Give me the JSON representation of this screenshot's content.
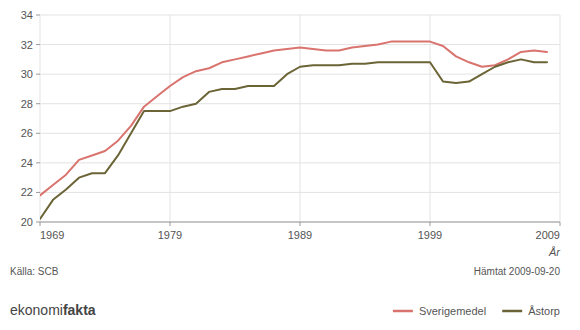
{
  "chart_data": {
    "type": "line",
    "x_label": "År",
    "x": [
      1969,
      1970,
      1971,
      1972,
      1973,
      1974,
      1975,
      1976,
      1977,
      1978,
      1979,
      1980,
      1981,
      1982,
      1983,
      1984,
      1985,
      1986,
      1987,
      1988,
      1989,
      1990,
      1991,
      1992,
      1993,
      1994,
      1995,
      1996,
      1997,
      1998,
      1999,
      2000,
      2001,
      2002,
      2003,
      2004,
      2005,
      2006,
      2007,
      2008
    ],
    "series": [
      {
        "name": "Sverigemedel",
        "color": "#d9736e",
        "values": [
          21.8,
          22.5,
          23.2,
          24.2,
          24.5,
          24.8,
          25.5,
          26.5,
          27.8,
          28.5,
          29.2,
          29.8,
          30.2,
          30.4,
          30.8,
          31.0,
          31.2,
          31.4,
          31.6,
          31.7,
          31.8,
          31.7,
          31.6,
          31.6,
          31.8,
          31.9,
          32.0,
          32.2,
          32.2,
          32.2,
          32.2,
          31.9,
          31.2,
          30.8,
          30.5,
          30.6,
          31.0,
          31.5,
          31.6,
          31.5
        ]
      },
      {
        "name": "Åstorp",
        "color": "#6b6436",
        "values": [
          20.2,
          21.5,
          22.2,
          23.0,
          23.3,
          23.3,
          24.5,
          26.0,
          27.5,
          27.5,
          27.5,
          27.8,
          28.0,
          28.8,
          29.0,
          29.0,
          29.2,
          29.2,
          29.2,
          30.0,
          30.5,
          30.6,
          30.6,
          30.6,
          30.7,
          30.7,
          30.8,
          30.8,
          30.8,
          30.8,
          30.8,
          29.5,
          29.4,
          29.5,
          30.0,
          30.5,
          30.8,
          31.0,
          30.8,
          30.8
        ]
      }
    ],
    "xlim": [
      1969,
      2009
    ],
    "xticks": [
      1969,
      1979,
      1989,
      1999,
      2009
    ],
    "ylim": [
      20,
      34
    ],
    "yticks": [
      20,
      22,
      24,
      26,
      28,
      30,
      32,
      34
    ],
    "grid": true,
    "legend": "lower right",
    "annotations": [
      "Källa: SCB",
      "Hämtat 2009-09-20",
      "ekonomi",
      "fakta"
    ]
  }
}
